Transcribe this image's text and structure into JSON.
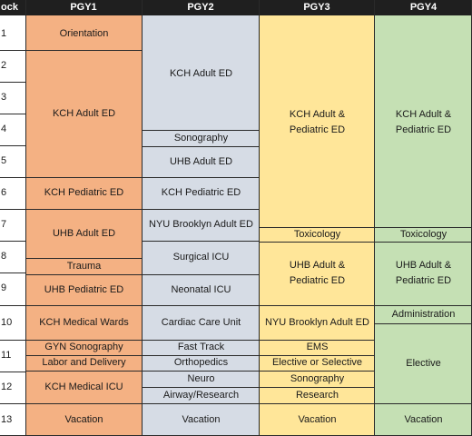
{
  "headers": {
    "block": "ock",
    "pgy1": "PGY1",
    "pgy2": "PGY2",
    "pgy3": "PGY3",
    "pgy4": "PGY4"
  },
  "blocks": [
    "1",
    "2",
    "3",
    "4",
    "5",
    "6",
    "7",
    "8",
    "9",
    "10",
    "11",
    "12",
    "13"
  ],
  "pgy1": {
    "orientation": "Orientation",
    "kch_adult_ed": "KCH Adult ED",
    "kch_pediatric_ed": "KCH Pediatric ED",
    "uhb_adult_ed": "UHB Adult ED",
    "trauma": "Trauma",
    "uhb_pediatric_ed": "UHB Pediatric ED",
    "kch_medical_wards": "KCH Medical Wards",
    "gyn_sonography": "GYN Sonography",
    "labor_delivery": "Labor and Delivery",
    "kch_medical_icu": "KCH Medical ICU",
    "vacation": "Vacation"
  },
  "pgy2": {
    "kch_adult_ed": "KCH Adult ED",
    "sonography": "Sonography",
    "uhb_adult_ed": "UHB Adult ED",
    "kch_pediatric_ed": "KCH Pediatric ED",
    "nyu_brooklyn_adult_ed": "NYU Brooklyn Adult ED",
    "surgical_icu": "Surgical ICU",
    "neonatal_icu": "Neonatal ICU",
    "cardiac_care_unit": "Cardiac Care Unit",
    "fast_track": "Fast Track",
    "orthopedics": "Orthopedics",
    "neuro": "Neuro",
    "airway_research": "Airway/Research",
    "vacation": "Vacation"
  },
  "pgy3": {
    "kch_adult_pediatric_ed_line1": "KCH Adult &",
    "kch_adult_pediatric_ed_line2": "Pediatric ED",
    "toxicology": "Toxicology",
    "uhb_adult_pediatric_ed_line1": "UHB Adult &",
    "uhb_adult_pediatric_ed_line2": "Pediatric ED",
    "nyu_brooklyn_adult_ed": "NYU Brooklyn Adult ED",
    "ems": "EMS",
    "elective_or_selective": "Elective or Selective",
    "sonography": "Sonography",
    "research": "Research",
    "vacation": "Vacation"
  },
  "pgy4": {
    "kch_adult_pediatric_ed_line1": "KCH Adult &",
    "kch_adult_pediatric_ed_line2": "Pediatric ED",
    "toxicology": "Toxicology",
    "uhb_adult_pediatric_ed_line1": "UHB Adult &",
    "uhb_adult_pediatric_ed_line2": "Pediatric ED",
    "administration": "Administration",
    "elective": "Elective",
    "vacation": "Vacation"
  },
  "colors": {
    "pgy1": "#f4b183",
    "pgy2": "#d6dce5",
    "pgy3": "#ffe699",
    "pgy4": "#c5e0b4",
    "header": "#1f1f1f"
  }
}
